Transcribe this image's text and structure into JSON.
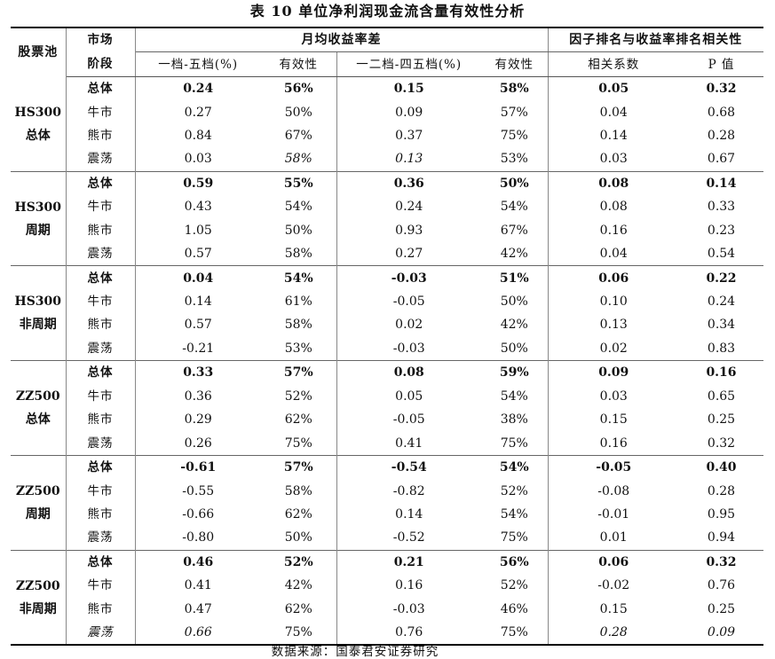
{
  "title": "表 10 单位净利润现金流含量有效性分析",
  "header": {
    "pool": "股票池",
    "stage_line1": "市场",
    "stage_line2": "阶段",
    "group_return": "月均收益率差",
    "group_corr": "因子排名与收益率排名相关性",
    "col_spread15": "一档-五档(%)",
    "col_eff1": "有效性",
    "col_spread1245": "一二档-四五档(%)",
    "col_eff2": "有效性",
    "col_corr": "相关系数",
    "col_p": "P 值"
  },
  "groups": [
    {
      "pool_line1": "HS300",
      "pool_line2": "总体",
      "rows": [
        {
          "stage": "总体",
          "v": [
            "0.24",
            "56%",
            "0.15",
            "58%",
            "0.05",
            "0.32"
          ],
          "bold": true
        },
        {
          "stage": "牛市",
          "v": [
            "0.27",
            "50%",
            "0.09",
            "57%",
            "0.04",
            "0.68"
          ]
        },
        {
          "stage": "熊市",
          "v": [
            "0.84",
            "67%",
            "0.37",
            "75%",
            "0.14",
            "0.28"
          ]
        },
        {
          "stage": "震荡",
          "v": [
            "0.03",
            "58%",
            "0.13",
            "53%",
            "0.03",
            "0.67"
          ]
        }
      ]
    },
    {
      "pool_line1": "HS300",
      "pool_line2": "周期",
      "rows": [
        {
          "stage": "总体",
          "v": [
            "0.59",
            "55%",
            "0.36",
            "50%",
            "0.08",
            "0.14"
          ],
          "bold": true
        },
        {
          "stage": "牛市",
          "v": [
            "0.43",
            "54%",
            "0.24",
            "54%",
            "0.08",
            "0.33"
          ]
        },
        {
          "stage": "熊市",
          "v": [
            "1.05",
            "50%",
            "0.93",
            "67%",
            "0.16",
            "0.23"
          ]
        },
        {
          "stage": "震荡",
          "v": [
            "0.57",
            "58%",
            "0.27",
            "42%",
            "0.04",
            "0.54"
          ]
        }
      ]
    },
    {
      "pool_line1": "HS300",
      "pool_line2": "非周期",
      "rows": [
        {
          "stage": "总体",
          "v": [
            "0.04",
            "54%",
            "-0.03",
            "51%",
            "0.06",
            "0.22"
          ],
          "bold": true
        },
        {
          "stage": "牛市",
          "v": [
            "0.14",
            "61%",
            "-0.05",
            "50%",
            "0.10",
            "0.24"
          ]
        },
        {
          "stage": "熊市",
          "v": [
            "0.57",
            "58%",
            "0.02",
            "42%",
            "0.13",
            "0.34"
          ]
        },
        {
          "stage": "震荡",
          "v": [
            "-0.21",
            "53%",
            "-0.03",
            "50%",
            "0.02",
            "0.83"
          ]
        }
      ]
    },
    {
      "pool_line1": "ZZ500",
      "pool_line2": "总体",
      "rows": [
        {
          "stage": "总体",
          "v": [
            "0.33",
            "57%",
            "0.08",
            "59%",
            "0.09",
            "0.16"
          ],
          "bold": true
        },
        {
          "stage": "牛市",
          "v": [
            "0.36",
            "52%",
            "0.05",
            "54%",
            "0.03",
            "0.65"
          ]
        },
        {
          "stage": "熊市",
          "v": [
            "0.29",
            "62%",
            "-0.05",
            "38%",
            "0.15",
            "0.25"
          ]
        },
        {
          "stage": "震荡",
          "v": [
            "0.26",
            "75%",
            "0.41",
            "75%",
            "0.16",
            "0.32"
          ]
        }
      ]
    },
    {
      "pool_line1": "ZZ500",
      "pool_line2": "周期",
      "rows": [
        {
          "stage": "总体",
          "v": [
            "-0.61",
            "57%",
            "-0.54",
            "54%",
            "-0.05",
            "0.40"
          ],
          "bold": true
        },
        {
          "stage": "牛市",
          "v": [
            "-0.55",
            "58%",
            "-0.82",
            "52%",
            "-0.08",
            "0.28"
          ]
        },
        {
          "stage": "熊市",
          "v": [
            "-0.66",
            "62%",
            "0.14",
            "54%",
            "-0.01",
            "0.95"
          ]
        },
        {
          "stage": "震荡",
          "v": [
            "-0.80",
            "50%",
            "-0.52",
            "75%",
            "0.01",
            "0.94"
          ]
        }
      ]
    },
    {
      "pool_line1": "ZZ500",
      "pool_line2": "非周期",
      "rows": [
        {
          "stage": "总体",
          "v": [
            "0.46",
            "52%",
            "0.21",
            "56%",
            "0.06",
            "0.32"
          ],
          "bold": true
        },
        {
          "stage": "牛市",
          "v": [
            "0.41",
            "42%",
            "0.16",
            "52%",
            "-0.02",
            "0.76"
          ]
        },
        {
          "stage": "熊市",
          "v": [
            "0.47",
            "62%",
            "-0.03",
            "46%",
            "0.15",
            "0.25"
          ]
        },
        {
          "stage": "震荡",
          "v": [
            "0.66",
            "75%",
            "0.76",
            "75%",
            "0.28",
            "0.09"
          ]
        }
      ]
    }
  ],
  "source": "数据来源：国泰君安证券研究"
}
